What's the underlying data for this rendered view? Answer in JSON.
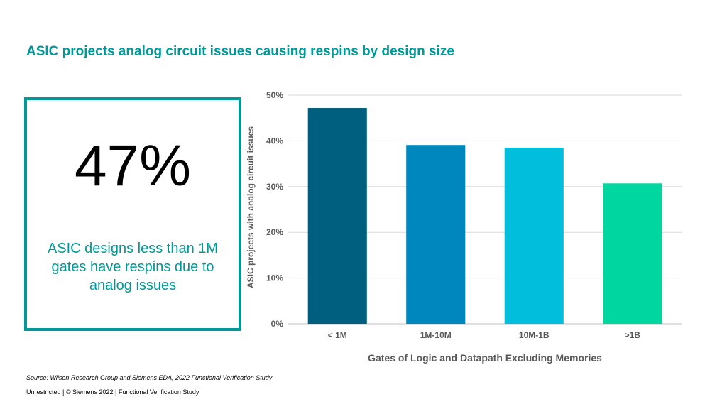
{
  "title": "ASIC projects analog circuit issues causing respins by design size",
  "callout": {
    "number": "47%",
    "text": "ASIC designs less than 1M gates have respins due to analog issues"
  },
  "chart_data": {
    "type": "bar",
    "categories": [
      "< 1M",
      "1M-10M",
      "10M-1B",
      ">1B"
    ],
    "values": [
      47.2,
      39.1,
      38.5,
      30.7
    ],
    "colors": [
      "#005F7F",
      "#0087BE",
      "#00BEDC",
      "#00D7A0"
    ],
    "xlabel": "Gates of Logic and Datapath Excluding Memories",
    "ylabel": "ASIC projects with analog circuit issues",
    "ylim": [
      0,
      50
    ],
    "yticks": [
      "0%",
      "10%",
      "20%",
      "30%",
      "40%",
      "50%"
    ],
    "grid": true
  },
  "footer": {
    "source": "Source:  Wilson Research Group and Siemens EDA, 2022 Functional Verification Study",
    "text": "Unrestricted | © Siemens 2022 |  Functional Verification Study"
  }
}
